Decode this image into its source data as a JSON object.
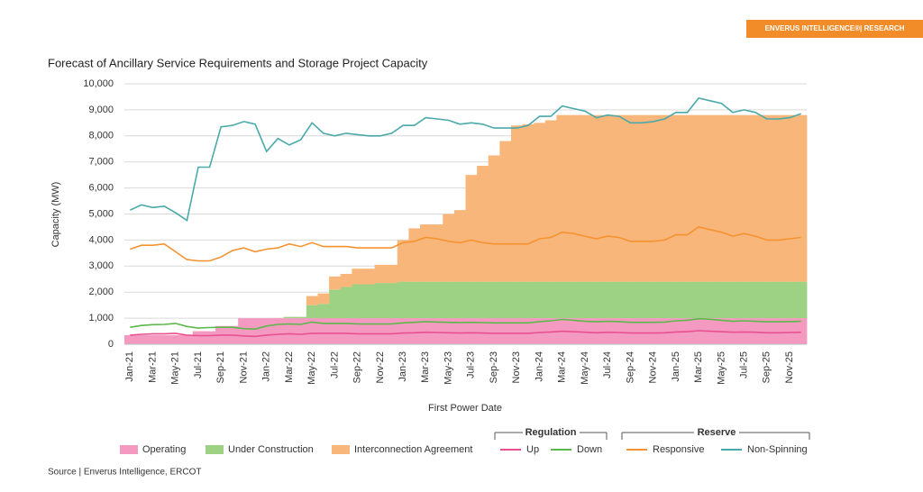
{
  "badge": "ENVERUS INTELLIGENCE®| RESEARCH",
  "source": "Source | Enverus Intelligence, ERCOT",
  "chart_data": {
    "type": "stacked_step_area_line",
    "title": "Forecast of Ancillary Service Requirements and Storage Project Capacity",
    "x_label": "First Power Date",
    "y_label": "Capacity (MW)",
    "ylim": [
      0,
      10000
    ],
    "yticks": [
      0,
      {
        "value": 1000,
        "label": "1,000"
      },
      {
        "value": 2000,
        "label": "2,000"
      },
      {
        "value": 3000,
        "label": "3,000"
      },
      {
        "value": 4000,
        "label": "4,000"
      },
      {
        "value": 5000,
        "label": "5,000"
      },
      {
        "value": 6000,
        "label": "6,000"
      },
      {
        "value": 7000,
        "label": "7,000"
      },
      {
        "value": 8000,
        "label": "8,000"
      },
      {
        "value": 9000,
        "label": "9,000"
      },
      {
        "value": 10000,
        "label": "10,000"
      }
    ],
    "categories": [
      "Jan-21",
      null,
      "Mar-21",
      null,
      "May-21",
      null,
      "Jul-21",
      null,
      "Sep-21",
      null,
      "Nov-21",
      null,
      "Jan-22",
      null,
      "Mar-22",
      null,
      "May-22",
      null,
      "Jul-22",
      null,
      "Sep-22",
      null,
      "Nov-22",
      null,
      "Jan-23",
      null,
      "Mar-23",
      null,
      "May-23",
      null,
      "Jul-23",
      null,
      "Sep-23",
      null,
      "Nov-23",
      null,
      "Jan-24",
      null,
      "Mar-24",
      null,
      "May-24",
      null,
      "Jul-24",
      null,
      "Sep-24",
      null,
      "Nov-24",
      null,
      "Jan-25",
      null,
      "Mar-25",
      null,
      "May-25",
      null,
      "Jul-25",
      null,
      "Sep-25",
      null,
      "Nov-25",
      null
    ],
    "legend_groups": [
      {
        "title": "Regulation"
      },
      {
        "title": "Reserve"
      }
    ],
    "series": [
      {
        "name": "Operating",
        "kind": "step-area",
        "color": "#f49ac1",
        "values": [
          350,
          350,
          350,
          350,
          350,
          350,
          500,
          500,
          700,
          700,
          1000,
          1000,
          1000,
          1000,
          1000,
          1000,
          1000,
          1000,
          1000,
          1000,
          1000,
          1000,
          1000,
          1000,
          1000,
          1000,
          1000,
          1000,
          1000,
          1000,
          1000,
          1000,
          1000,
          1000,
          1000,
          1000,
          1000,
          1000,
          1000,
          1000,
          1000,
          1000,
          1000,
          1000,
          1000,
          1000,
          1000,
          1000,
          1000,
          1000,
          1000,
          1000,
          1000,
          1000,
          1000,
          1000,
          1000,
          1000,
          1000,
          1000
        ]
      },
      {
        "name": "Under Construction",
        "kind": "step-area",
        "color": "#9dd183",
        "values": [
          0,
          0,
          0,
          0,
          0,
          0,
          0,
          0,
          0,
          0,
          0,
          0,
          0,
          0,
          50,
          50,
          500,
          550,
          1100,
          1200,
          1300,
          1300,
          1350,
          1350,
          1400,
          1400,
          1400,
          1400,
          1400,
          1400,
          1400,
          1400,
          1400,
          1400,
          1400,
          1400,
          1400,
          1400,
          1400,
          1400,
          1400,
          1400,
          1400,
          1400,
          1400,
          1400,
          1400,
          1400,
          1400,
          1400,
          1400,
          1400,
          1400,
          1400,
          1400,
          1400,
          1400,
          1400,
          1400,
          1400
        ]
      },
      {
        "name": "Interconnection Agreement",
        "kind": "step-area",
        "color": "#f9b67a",
        "values": [
          0,
          0,
          0,
          0,
          0,
          0,
          0,
          0,
          0,
          0,
          0,
          0,
          0,
          0,
          0,
          0,
          350,
          400,
          500,
          500,
          600,
          600,
          700,
          700,
          1600,
          2050,
          2200,
          2200,
          2600,
          2750,
          4100,
          4450,
          4850,
          5400,
          6000,
          6050,
          6100,
          6200,
          6400,
          6400,
          6400,
          6400,
          6400,
          6400,
          6400,
          6400,
          6400,
          6400,
          6400,
          6400,
          6400,
          6400,
          6400,
          6400,
          6400,
          6400,
          6400,
          6400,
          6400,
          6400
        ]
      },
      {
        "name": "Up",
        "kind": "line",
        "color": "#e8508f",
        "values": [
          350,
          380,
          400,
          400,
          420,
          350,
          330,
          330,
          350,
          350,
          320,
          300,
          350,
          380,
          400,
          380,
          420,
          420,
          420,
          420,
          400,
          400,
          400,
          400,
          430,
          440,
          460,
          450,
          440,
          430,
          440,
          430,
          420,
          420,
          420,
          420,
          450,
          470,
          500,
          480,
          460,
          440,
          460,
          450,
          430,
          430,
          430,
          440,
          470,
          480,
          520,
          500,
          480,
          460,
          470,
          460,
          440,
          440,
          450,
          460
        ]
      },
      {
        "name": "Down",
        "kind": "line",
        "color": "#5bb84a",
        "values": [
          650,
          720,
          750,
          760,
          800,
          680,
          620,
          640,
          650,
          650,
          600,
          580,
          700,
          760,
          780,
          760,
          850,
          800,
          800,
          800,
          780,
          780,
          780,
          780,
          820,
          840,
          870,
          850,
          840,
          830,
          840,
          830,
          820,
          820,
          820,
          820,
          870,
          900,
          950,
          920,
          880,
          860,
          880,
          870,
          840,
          840,
          840,
          850,
          900,
          920,
          980,
          960,
          920,
          880,
          900,
          880,
          860,
          860,
          870,
          880
        ]
      },
      {
        "name": "Responsive",
        "kind": "line",
        "color": "#f59331",
        "values": [
          3650,
          3800,
          3800,
          3850,
          3550,
          3250,
          3200,
          3200,
          3350,
          3600,
          3700,
          3550,
          3650,
          3700,
          3850,
          3750,
          3900,
          3750,
          3750,
          3750,
          3700,
          3700,
          3700,
          3700,
          3900,
          3950,
          4100,
          4050,
          3950,
          3900,
          4000,
          3900,
          3850,
          3850,
          3850,
          3850,
          4050,
          4100,
          4300,
          4250,
          4150,
          4050,
          4150,
          4100,
          3950,
          3950,
          3950,
          4000,
          4200,
          4200,
          4500,
          4400,
          4300,
          4150,
          4250,
          4150,
          4000,
          4000,
          4050,
          4100
        ]
      },
      {
        "name": "Non-Spinning",
        "kind": "line",
        "color": "#4aa9a9",
        "values": [
          5150,
          5350,
          5250,
          5300,
          5050,
          4750,
          6800,
          6800,
          8350,
          8400,
          8550,
          8450,
          7400,
          7900,
          7650,
          7850,
          8500,
          8100,
          8000,
          8100,
          8050,
          8000,
          8000,
          8100,
          8400,
          8400,
          8700,
          8650,
          8600,
          8450,
          8500,
          8450,
          8300,
          8300,
          8300,
          8400,
          8750,
          8750,
          9150,
          9050,
          8950,
          8700,
          8800,
          8750,
          8500,
          8500,
          8550,
          8650,
          8900,
          8900,
          9450,
          9350,
          9250,
          8900,
          9000,
          8900,
          8650,
          8650,
          8700,
          8850
        ]
      }
    ]
  }
}
